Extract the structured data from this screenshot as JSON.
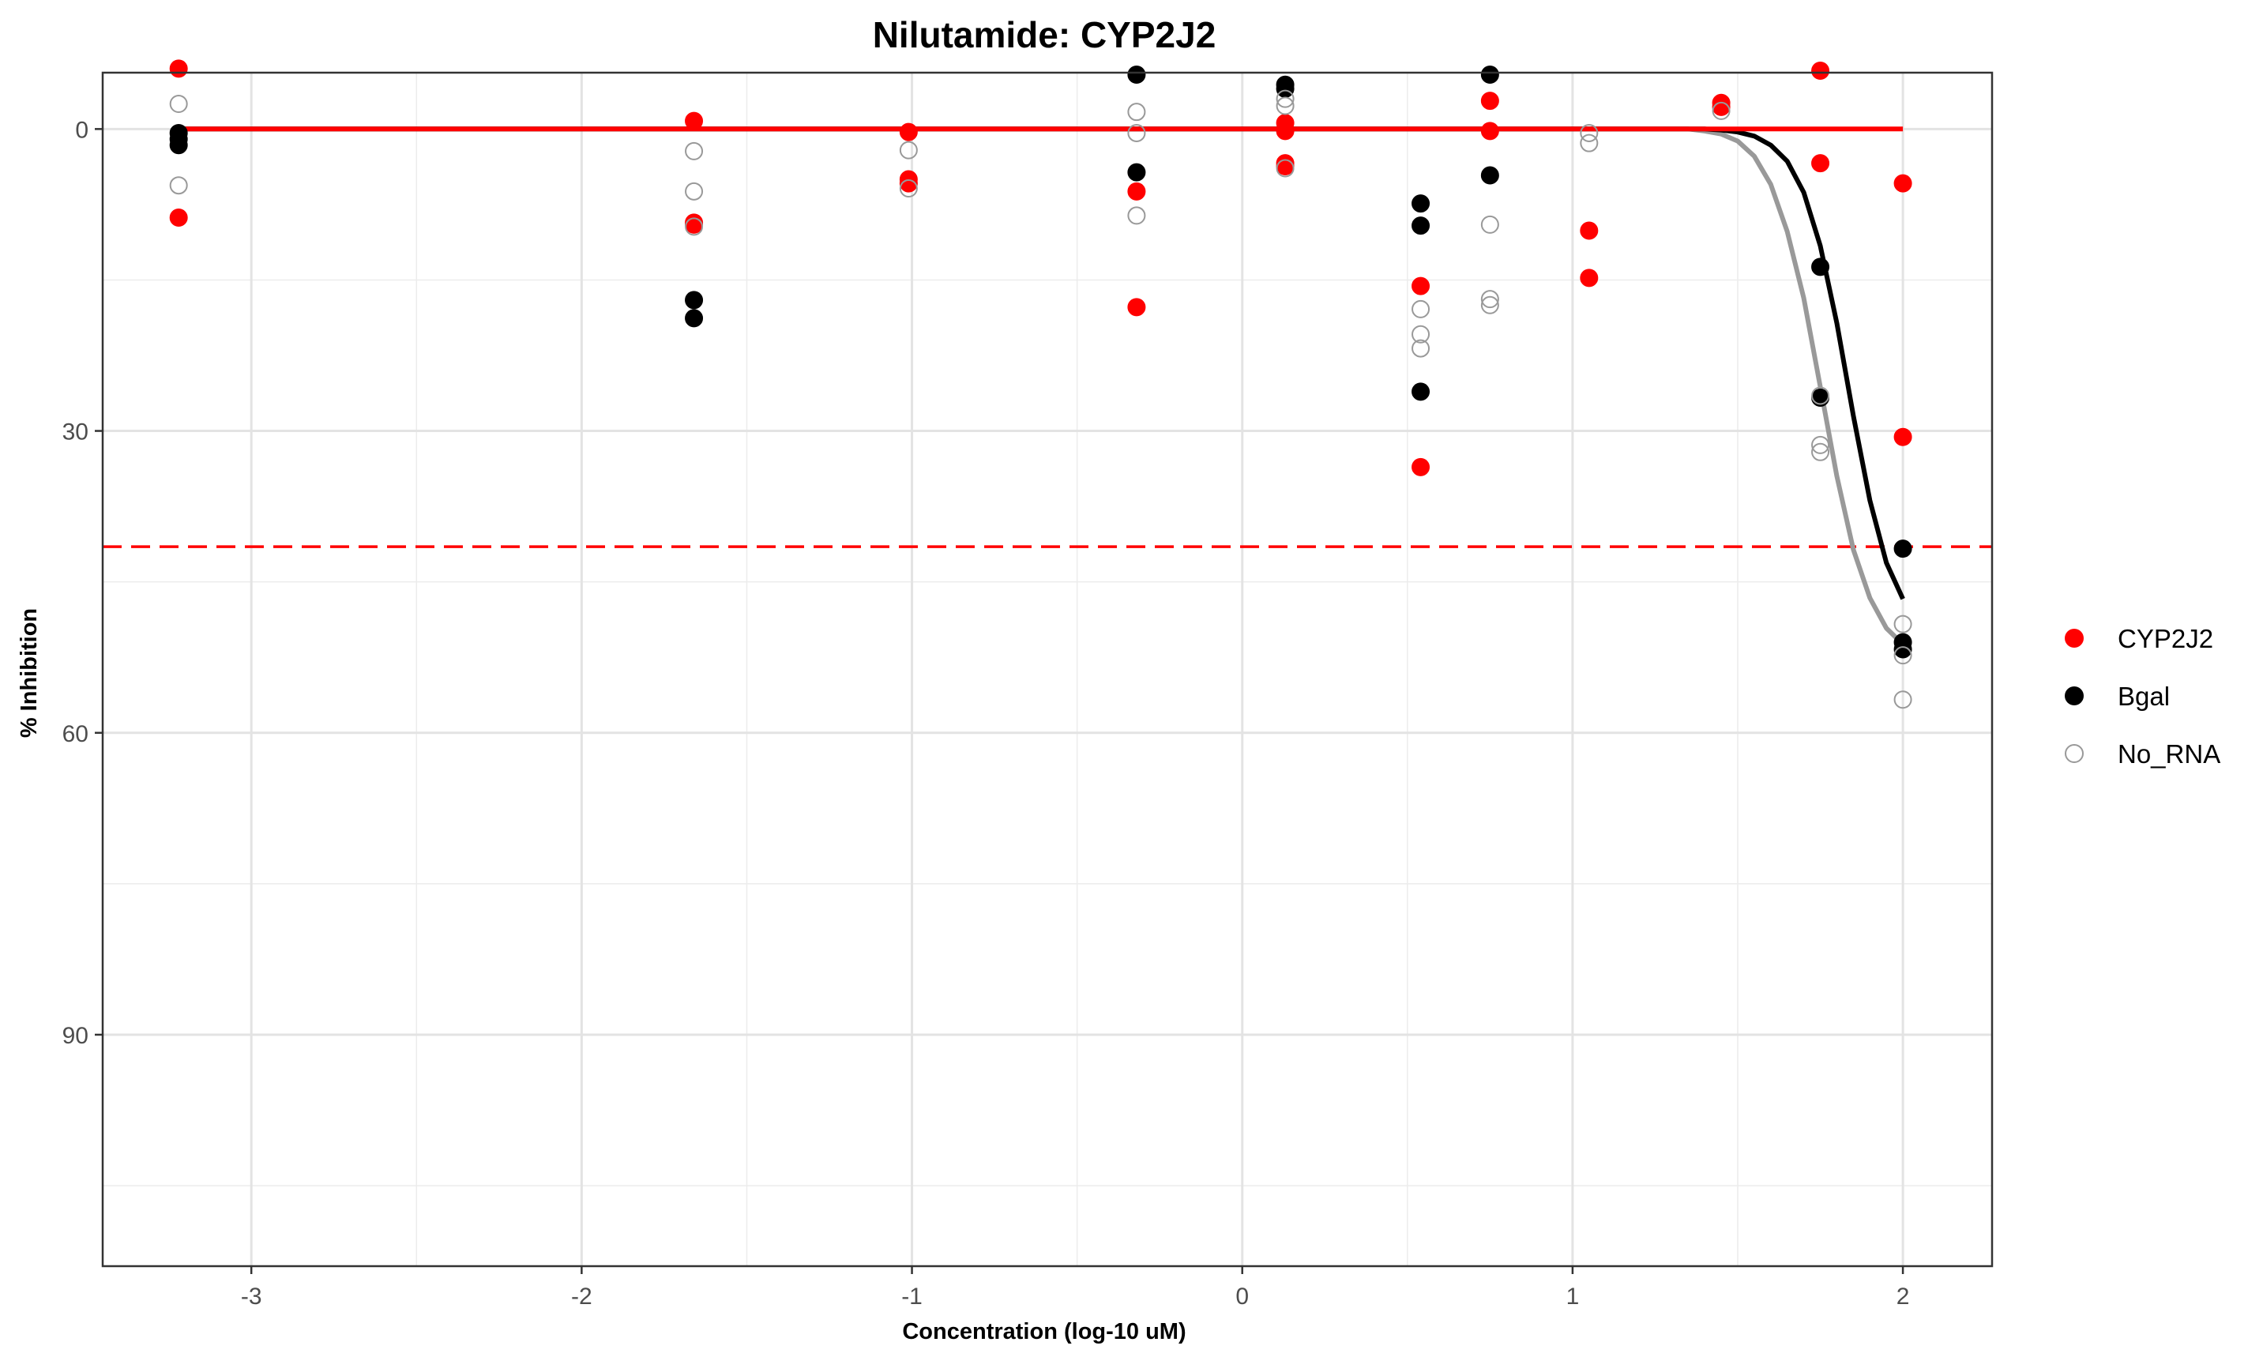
{
  "chart_data": {
    "type": "scatter",
    "title": "Nilutamide: CYP2J2",
    "xlabel": "Concentration (log-10 uM)",
    "ylabel": "% Inhibition",
    "xlim": [
      -3.45,
      2.27
    ],
    "ylim": [
      -5.6,
      113
    ],
    "y_reversed": true,
    "x_ticks": [
      -3,
      -2,
      -1,
      0,
      1,
      2
    ],
    "x_tick_labels": [
      "-3",
      "-2",
      "-1",
      "0",
      "1",
      "2"
    ],
    "y_ticks": [
      0,
      30,
      60,
      90
    ],
    "y_tick_labels": [
      "0",
      "30",
      "60",
      "90"
    ],
    "grid": true,
    "legend_position": "right",
    "threshold": {
      "y": 41.5,
      "color": "#ff0000",
      "style": "dashed"
    },
    "series": [
      {
        "name": "CYP2J2",
        "color": "#ff0000",
        "marker": "filled-circle",
        "points": [
          [
            -3.22,
            -6
          ],
          [
            -3.22,
            8.8
          ],
          [
            -1.66,
            -0.8
          ],
          [
            -1.66,
            9.3
          ],
          [
            -1.66,
            9.5
          ],
          [
            -1.01,
            0.3
          ],
          [
            -1.01,
            5
          ],
          [
            -1.01,
            5.4
          ],
          [
            -0.32,
            6.2
          ],
          [
            -0.32,
            17.7
          ],
          [
            0.13,
            -0.6
          ],
          [
            0.13,
            0.2
          ],
          [
            0.13,
            3.4
          ],
          [
            0.13,
            3.7
          ],
          [
            0.54,
            15.6
          ],
          [
            0.54,
            33.6
          ],
          [
            0.75,
            -2.8
          ],
          [
            0.75,
            0.2
          ],
          [
            1.05,
            10.1
          ],
          [
            1.05,
            14.8
          ],
          [
            1.45,
            -2.6
          ],
          [
            1.45,
            -2.2
          ],
          [
            1.75,
            -5.8
          ],
          [
            1.75,
            3.4
          ],
          [
            2.0,
            5.4
          ],
          [
            2.0,
            30.6
          ]
        ],
        "curve": [
          [
            -3.22,
            0
          ],
          [
            2.0,
            0
          ]
        ]
      },
      {
        "name": "Bgal",
        "color": "#000000",
        "marker": "filled-circle",
        "points": [
          [
            -3.22,
            0.4
          ],
          [
            -3.22,
            1
          ],
          [
            -3.22,
            1.6
          ],
          [
            -1.66,
            17
          ],
          [
            -1.66,
            18.8
          ],
          [
            -0.32,
            -5.4
          ],
          [
            -0.32,
            4.3
          ],
          [
            0.13,
            -4.4
          ],
          [
            0.13,
            -4
          ],
          [
            0.54,
            7.4
          ],
          [
            0.54,
            9.6
          ],
          [
            0.54,
            26.1
          ],
          [
            0.75,
            -5.4
          ],
          [
            0.75,
            4.6
          ],
          [
            1.75,
            13.7
          ],
          [
            1.75,
            26.7
          ],
          [
            2.0,
            41.7
          ],
          [
            2.0,
            51
          ],
          [
            2.0,
            51.7
          ]
        ],
        "curve": [
          [
            -3.22,
            0
          ],
          [
            1.4,
            0
          ],
          [
            1.45,
            0.1
          ],
          [
            1.5,
            0.3
          ],
          [
            1.55,
            0.7
          ],
          [
            1.6,
            1.6
          ],
          [
            1.65,
            3.2
          ],
          [
            1.7,
            6.3
          ],
          [
            1.75,
            11.6
          ],
          [
            1.8,
            19.3
          ],
          [
            1.85,
            28.5
          ],
          [
            1.9,
            36.9
          ],
          [
            1.95,
            43.1
          ],
          [
            2.0,
            46.7
          ]
        ]
      },
      {
        "name": "No_RNA",
        "color": "#999999",
        "marker": "open-circle",
        "points": [
          [
            -3.22,
            -2.5
          ],
          [
            -3.22,
            5.6
          ],
          [
            -1.66,
            2.2
          ],
          [
            -1.66,
            6.2
          ],
          [
            -1.66,
            9.7
          ],
          [
            -1.01,
            2.1
          ],
          [
            -1.01,
            5.9
          ],
          [
            -0.32,
            -1.7
          ],
          [
            -0.32,
            0.4
          ],
          [
            -0.32,
            8.6
          ],
          [
            0.13,
            -3
          ],
          [
            0.13,
            -2.3
          ],
          [
            0.13,
            3.9
          ],
          [
            0.54,
            17.9
          ],
          [
            0.54,
            20.4
          ],
          [
            0.54,
            21.8
          ],
          [
            0.75,
            9.5
          ],
          [
            0.75,
            16.9
          ],
          [
            0.75,
            17.5
          ],
          [
            1.05,
            0.4
          ],
          [
            1.05,
            1.4
          ],
          [
            1.45,
            -1.8
          ],
          [
            1.75,
            26.5
          ],
          [
            1.75,
            31.4
          ],
          [
            1.75,
            32.1
          ],
          [
            2.0,
            49.2
          ],
          [
            2.0,
            52.3
          ],
          [
            2.0,
            56.7
          ]
        ],
        "curve": [
          [
            -3.22,
            0
          ],
          [
            1.35,
            0
          ],
          [
            1.4,
            0.2
          ],
          [
            1.45,
            0.5
          ],
          [
            1.5,
            1.2
          ],
          [
            1.55,
            2.7
          ],
          [
            1.6,
            5.5
          ],
          [
            1.65,
            10.2
          ],
          [
            1.7,
            16.8
          ],
          [
            1.75,
            25.6
          ],
          [
            1.8,
            34.5
          ],
          [
            1.85,
            41.8
          ],
          [
            1.9,
            46.6
          ],
          [
            1.95,
            49.6
          ],
          [
            2.0,
            51.2
          ]
        ]
      }
    ]
  }
}
